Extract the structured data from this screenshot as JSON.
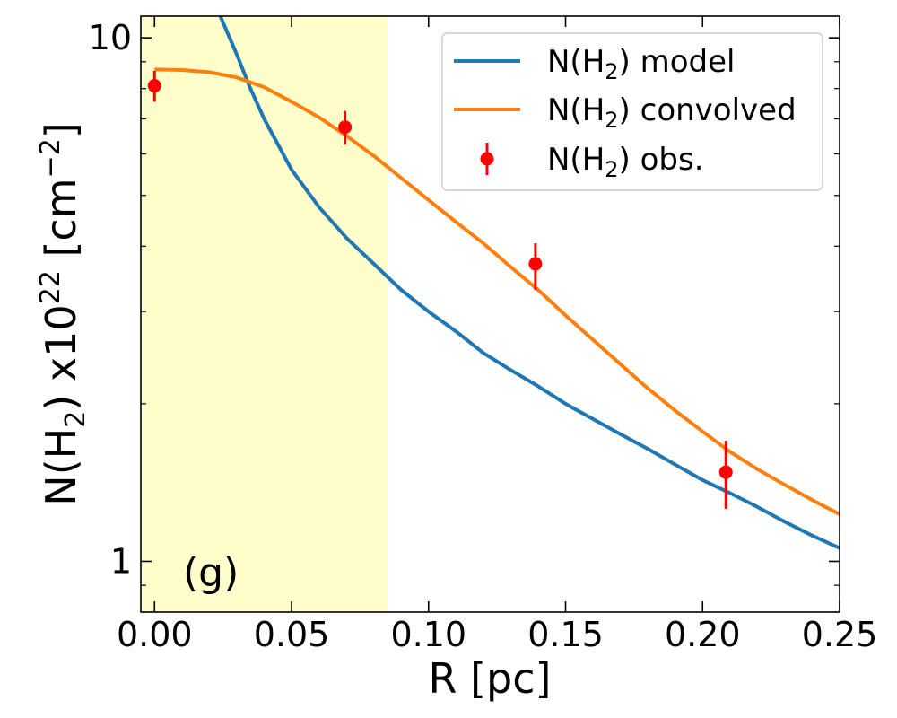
{
  "chart_data": {
    "type": "line",
    "panel_label": "(g)",
    "xlabel": "R [pc]",
    "ylabel": {
      "prefix": "N(H",
      "sub": "2",
      "middle": ") x10",
      "sup": "22",
      "unit_prefix": " [cm",
      "unit_sup": "−2",
      "unit_suffix": "]"
    },
    "xlim": [
      -0.005,
      0.25
    ],
    "ylim": [
      0.8,
      11.0
    ],
    "yscale": "log",
    "x_ticks": [
      0.0,
      0.05,
      0.1,
      0.15,
      0.2,
      0.25
    ],
    "x_tick_labels": [
      "0.00",
      "0.05",
      "0.10",
      "0.15",
      "0.20",
      "0.25"
    ],
    "y_major_ticks": [
      1,
      10
    ],
    "y_tick_labels": [
      "1",
      "10"
    ],
    "highlight_region": {
      "x0": -0.005,
      "x1": 0.085,
      "color": "#ffffcc"
    },
    "legend_position": "top-right",
    "series": [
      {
        "name": "model",
        "legend": {
          "prefix": "N(H",
          "sub": "2",
          "suffix": ") model"
        },
        "color": "#1f77b4",
        "x": [
          0.024,
          0.03,
          0.035,
          0.04,
          0.05,
          0.06,
          0.07,
          0.08,
          0.09,
          0.1,
          0.11,
          0.12,
          0.13,
          0.14,
          0.15,
          0.16,
          0.17,
          0.18,
          0.19,
          0.2,
          0.21,
          0.22,
          0.23,
          0.24,
          0.25
        ],
        "y": [
          11.0,
          9.3,
          8.0,
          7.0,
          5.6,
          4.75,
          4.15,
          3.7,
          3.3,
          3.0,
          2.75,
          2.5,
          2.32,
          2.16,
          2.0,
          1.87,
          1.75,
          1.64,
          1.53,
          1.43,
          1.35,
          1.27,
          1.19,
          1.12,
          1.06
        ]
      },
      {
        "name": "convolved",
        "legend": {
          "prefix": "N(H",
          "sub": "2",
          "suffix": ") convolved"
        },
        "color": "#ff7f0e",
        "x": [
          0.0,
          0.01,
          0.02,
          0.03,
          0.04,
          0.05,
          0.06,
          0.07,
          0.08,
          0.09,
          0.1,
          0.11,
          0.12,
          0.13,
          0.14,
          0.15,
          0.16,
          0.17,
          0.18,
          0.19,
          0.2,
          0.21,
          0.22,
          0.23,
          0.24,
          0.25
        ],
        "y": [
          8.7,
          8.68,
          8.6,
          8.4,
          8.05,
          7.55,
          7.05,
          6.5,
          5.95,
          5.4,
          4.9,
          4.45,
          4.05,
          3.65,
          3.3,
          2.95,
          2.65,
          2.38,
          2.14,
          1.94,
          1.77,
          1.62,
          1.5,
          1.4,
          1.31,
          1.23
        ]
      }
    ],
    "observations": {
      "name": "obs",
      "legend": {
        "prefix": "N(H",
        "sub": "2",
        "suffix": ") obs."
      },
      "color": "#ff0000",
      "points": [
        {
          "x": 0.0,
          "y": 8.1,
          "err_lo": 0.55,
          "err_hi": 0.55
        },
        {
          "x": 0.0695,
          "y": 6.75,
          "err_lo": 0.5,
          "err_hi": 0.5
        },
        {
          "x": 0.139,
          "y": 3.7,
          "err_lo": 0.4,
          "err_hi": 0.35
        },
        {
          "x": 0.2085,
          "y": 1.48,
          "err_lo": 0.22,
          "err_hi": 0.22
        }
      ]
    }
  }
}
